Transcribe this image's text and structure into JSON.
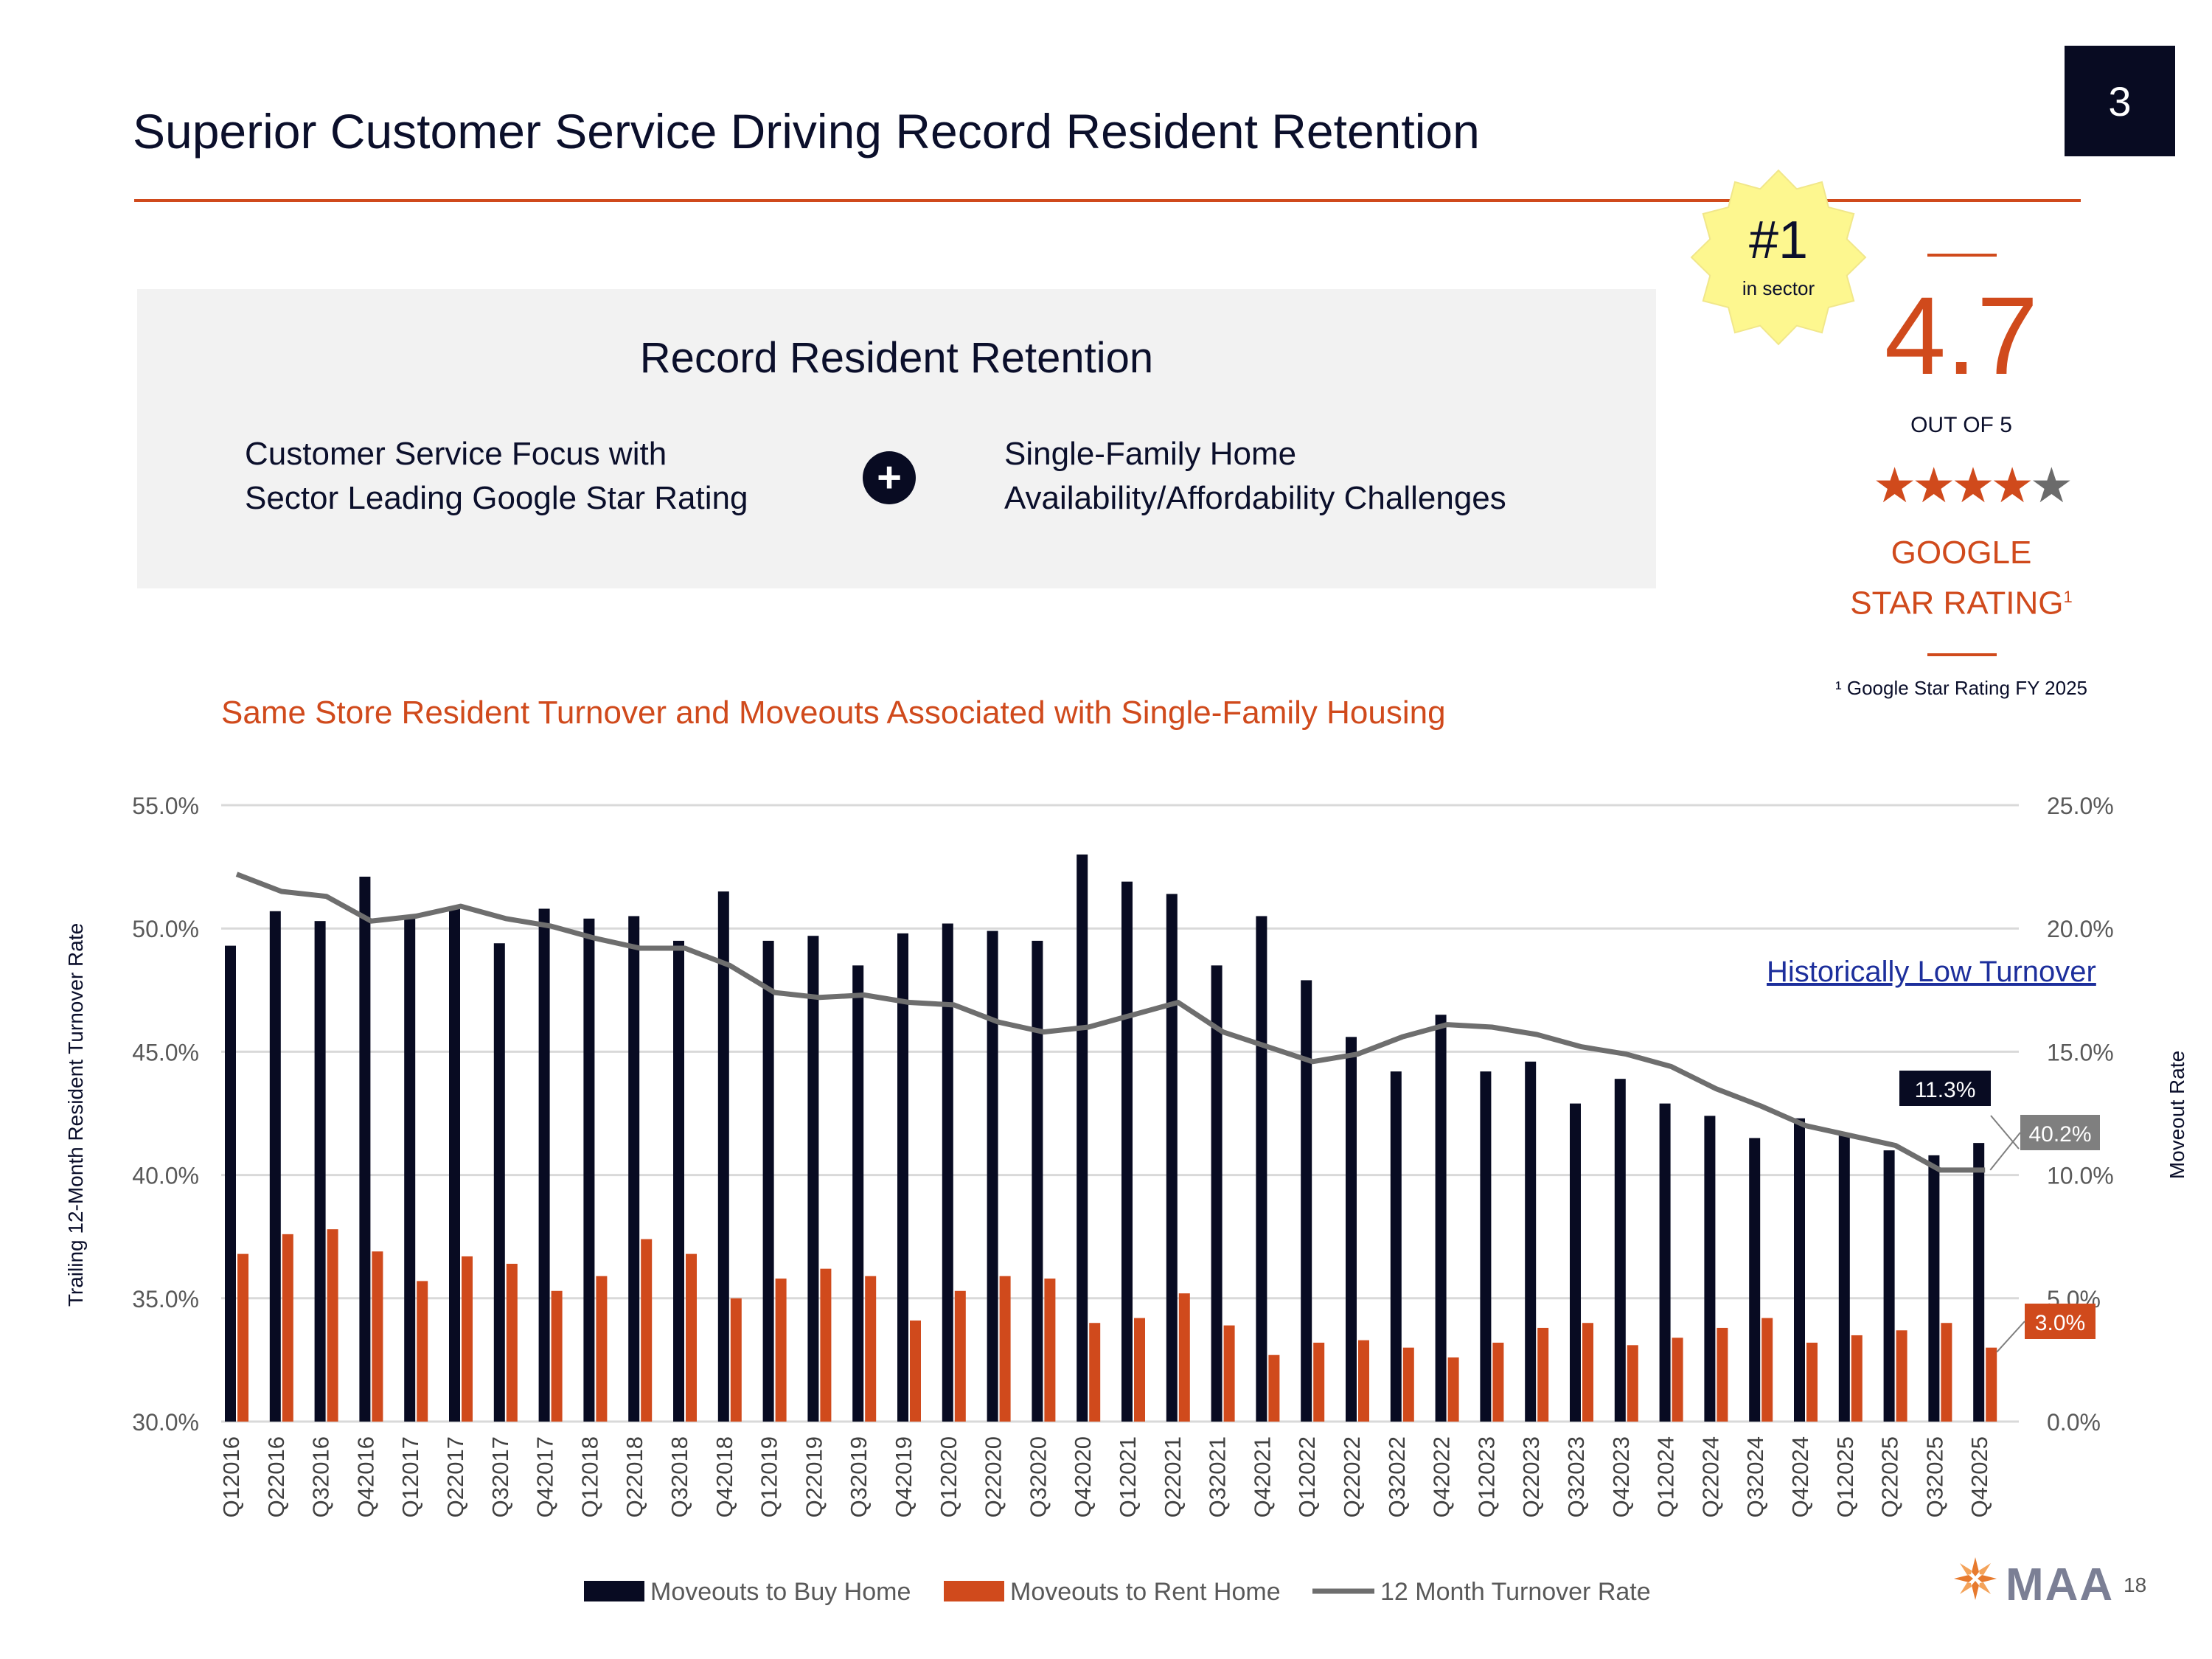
{
  "header": {
    "title": "Superior Customer Service Driving Record Resident Retention",
    "section_number": "3"
  },
  "panel": {
    "title": "Record Resident Retention",
    "left_line1": "Customer Service Focus with",
    "left_line2": "Sector Leading Google Star Rating",
    "plus_symbol": "+",
    "right_line1": "Single-Family Home",
    "right_line2": "Availability/Affordability Challenges"
  },
  "badge": {
    "rank": "#1",
    "rank_label": "in sector",
    "color": "#fdf78f"
  },
  "rating": {
    "value": "4.7",
    "out_of": "OUT OF 5",
    "stars_full": 4,
    "stars_total": 5,
    "label_line1": "GOOGLE",
    "label_line2": "STAR RATING",
    "superscript": "1",
    "footnote": "¹ Google Star Rating FY 2025"
  },
  "chart_data": {
    "type": "bar",
    "title": "Same Store Resident Turnover and Moveouts Associated with Single-Family Housing",
    "annotation": "Historically Low Turnover",
    "ylabel_left": "Trailing 12-Month Resident Turnover Rate",
    "ylabel_right": "Moveout Rate",
    "ylim_left": [
      30,
      55
    ],
    "ylim_right": [
      0,
      25
    ],
    "left_ticks": [
      "55.0%",
      "50.0%",
      "45.0%",
      "40.0%",
      "35.0%",
      "30.0%"
    ],
    "right_ticks": [
      "25.0%",
      "20.0%",
      "15.0%",
      "10.0%",
      "5.0%",
      "0.0%"
    ],
    "categories": [
      "Q12016",
      "Q22016",
      "Q32016",
      "Q42016",
      "Q12017",
      "Q22017",
      "Q32017",
      "Q42017",
      "Q12018",
      "Q22018",
      "Q32018",
      "Q42018",
      "Q12019",
      "Q22019",
      "Q32019",
      "Q42019",
      "Q12020",
      "Q22020",
      "Q32020",
      "Q42020",
      "Q12021",
      "Q22021",
      "Q32021",
      "Q42021",
      "Q12022",
      "Q22022",
      "Q32022",
      "Q42022",
      "Q12023",
      "Q22023",
      "Q32023",
      "Q42023",
      "Q12024",
      "Q22024",
      "Q32024",
      "Q42024",
      "Q12025",
      "Q22025",
      "Q32025",
      "Q42025"
    ],
    "series": [
      {
        "name": "Moveouts to Buy Home",
        "axis": "right",
        "kind": "bar",
        "color": "#080b22",
        "values": [
          19.3,
          20.7,
          20.3,
          22.1,
          20.5,
          20.9,
          19.4,
          20.8,
          20.4,
          20.5,
          19.5,
          21.5,
          19.5,
          19.7,
          18.5,
          19.8,
          20.2,
          19.9,
          19.5,
          23.0,
          21.9,
          21.4,
          18.5,
          20.5,
          17.9,
          15.6,
          14.2,
          16.5,
          14.2,
          14.6,
          12.9,
          13.9,
          12.9,
          12.4,
          11.5,
          12.3,
          11.7,
          11.0,
          10.8,
          11.3
        ]
      },
      {
        "name": "Moveouts to Rent Home",
        "axis": "right",
        "kind": "bar",
        "color": "#d04a1c",
        "values": [
          6.8,
          7.6,
          7.8,
          6.9,
          5.7,
          6.7,
          6.4,
          5.3,
          5.9,
          7.4,
          6.8,
          5.0,
          5.8,
          6.2,
          5.9,
          4.1,
          5.3,
          5.9,
          5.8,
          4.0,
          4.2,
          5.2,
          3.9,
          2.7,
          3.2,
          3.3,
          3.0,
          2.6,
          3.2,
          3.8,
          4.0,
          3.1,
          3.4,
          3.8,
          4.2,
          3.2,
          3.5,
          3.7,
          4.0,
          3.0
        ]
      },
      {
        "name": "12 Month Turnover Rate",
        "axis": "left",
        "kind": "line",
        "color": "#6e6e6e",
        "values": [
          52.2,
          51.5,
          51.3,
          50.3,
          50.5,
          50.9,
          50.4,
          50.1,
          49.6,
          49.2,
          49.2,
          48.5,
          47.4,
          47.2,
          47.3,
          47.0,
          46.9,
          46.2,
          45.8,
          46.0,
          46.5,
          47.0,
          45.8,
          45.2,
          44.6,
          44.9,
          45.6,
          46.1,
          46.0,
          45.7,
          45.2,
          44.9,
          44.4,
          43.5,
          42.8,
          42.0,
          41.6,
          41.2,
          40.2,
          40.2
        ]
      }
    ],
    "callouts": {
      "buy_last": "11.3%",
      "turnover_last": "40.2%",
      "rent_last": "3.0%"
    },
    "legend": [
      "Moveouts to Buy Home",
      "Moveouts to Rent Home",
      "12 Month Turnover Rate"
    ]
  },
  "footer": {
    "logo_text": "MAA",
    "page_number": "18"
  }
}
